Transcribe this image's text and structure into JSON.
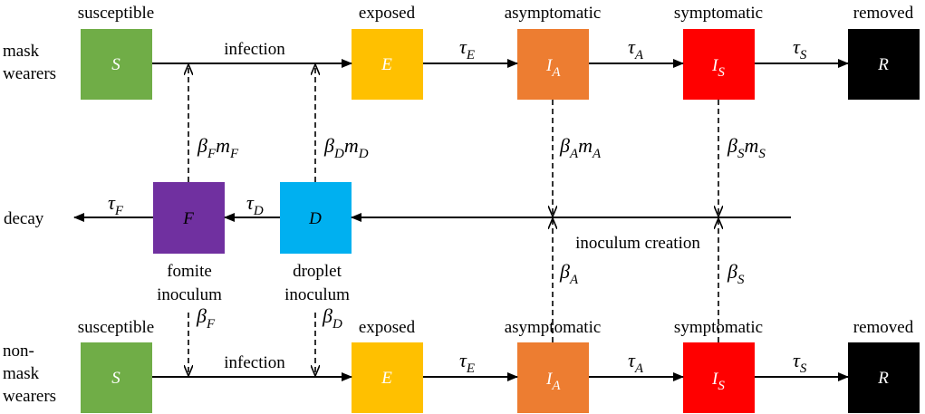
{
  "rows": {
    "mask": {
      "label_line1": "mask",
      "label_line2": "wearers",
      "infection": "infection"
    },
    "nonmask": {
      "label_line1": "non-",
      "label_line2": "mask",
      "label_line3": "wearers",
      "infection": "infection"
    }
  },
  "compartments": {
    "susceptible": {
      "title": "susceptible",
      "symbol": "S",
      "color": "#70ad47"
    },
    "exposed": {
      "title": "exposed",
      "symbol": "E",
      "color": "#ffc000"
    },
    "asymptomatic": {
      "title": "asymptomatic",
      "symbol": "I",
      "sub": "A",
      "color": "#ed7d31"
    },
    "symptomatic": {
      "title": "symptomatic",
      "symbol": "I",
      "sub": "S",
      "color": "#ff0000"
    },
    "removed": {
      "title": "removed",
      "symbol": "R",
      "color": "#000000"
    }
  },
  "inoculum": {
    "fomite": {
      "symbol": "F",
      "line1": "fomite",
      "line2": "inoculum",
      "color": "#7030a0"
    },
    "droplet": {
      "symbol": "D",
      "line1": "droplet",
      "line2": "inoculum",
      "color": "#00b0f0"
    },
    "decay": "decay",
    "creation": "inoculum creation"
  },
  "rates": {
    "tau": "τ",
    "beta": "β",
    "m": "m",
    "E": "E",
    "A": "A",
    "S": "S",
    "F": "F",
    "D": "D"
  }
}
